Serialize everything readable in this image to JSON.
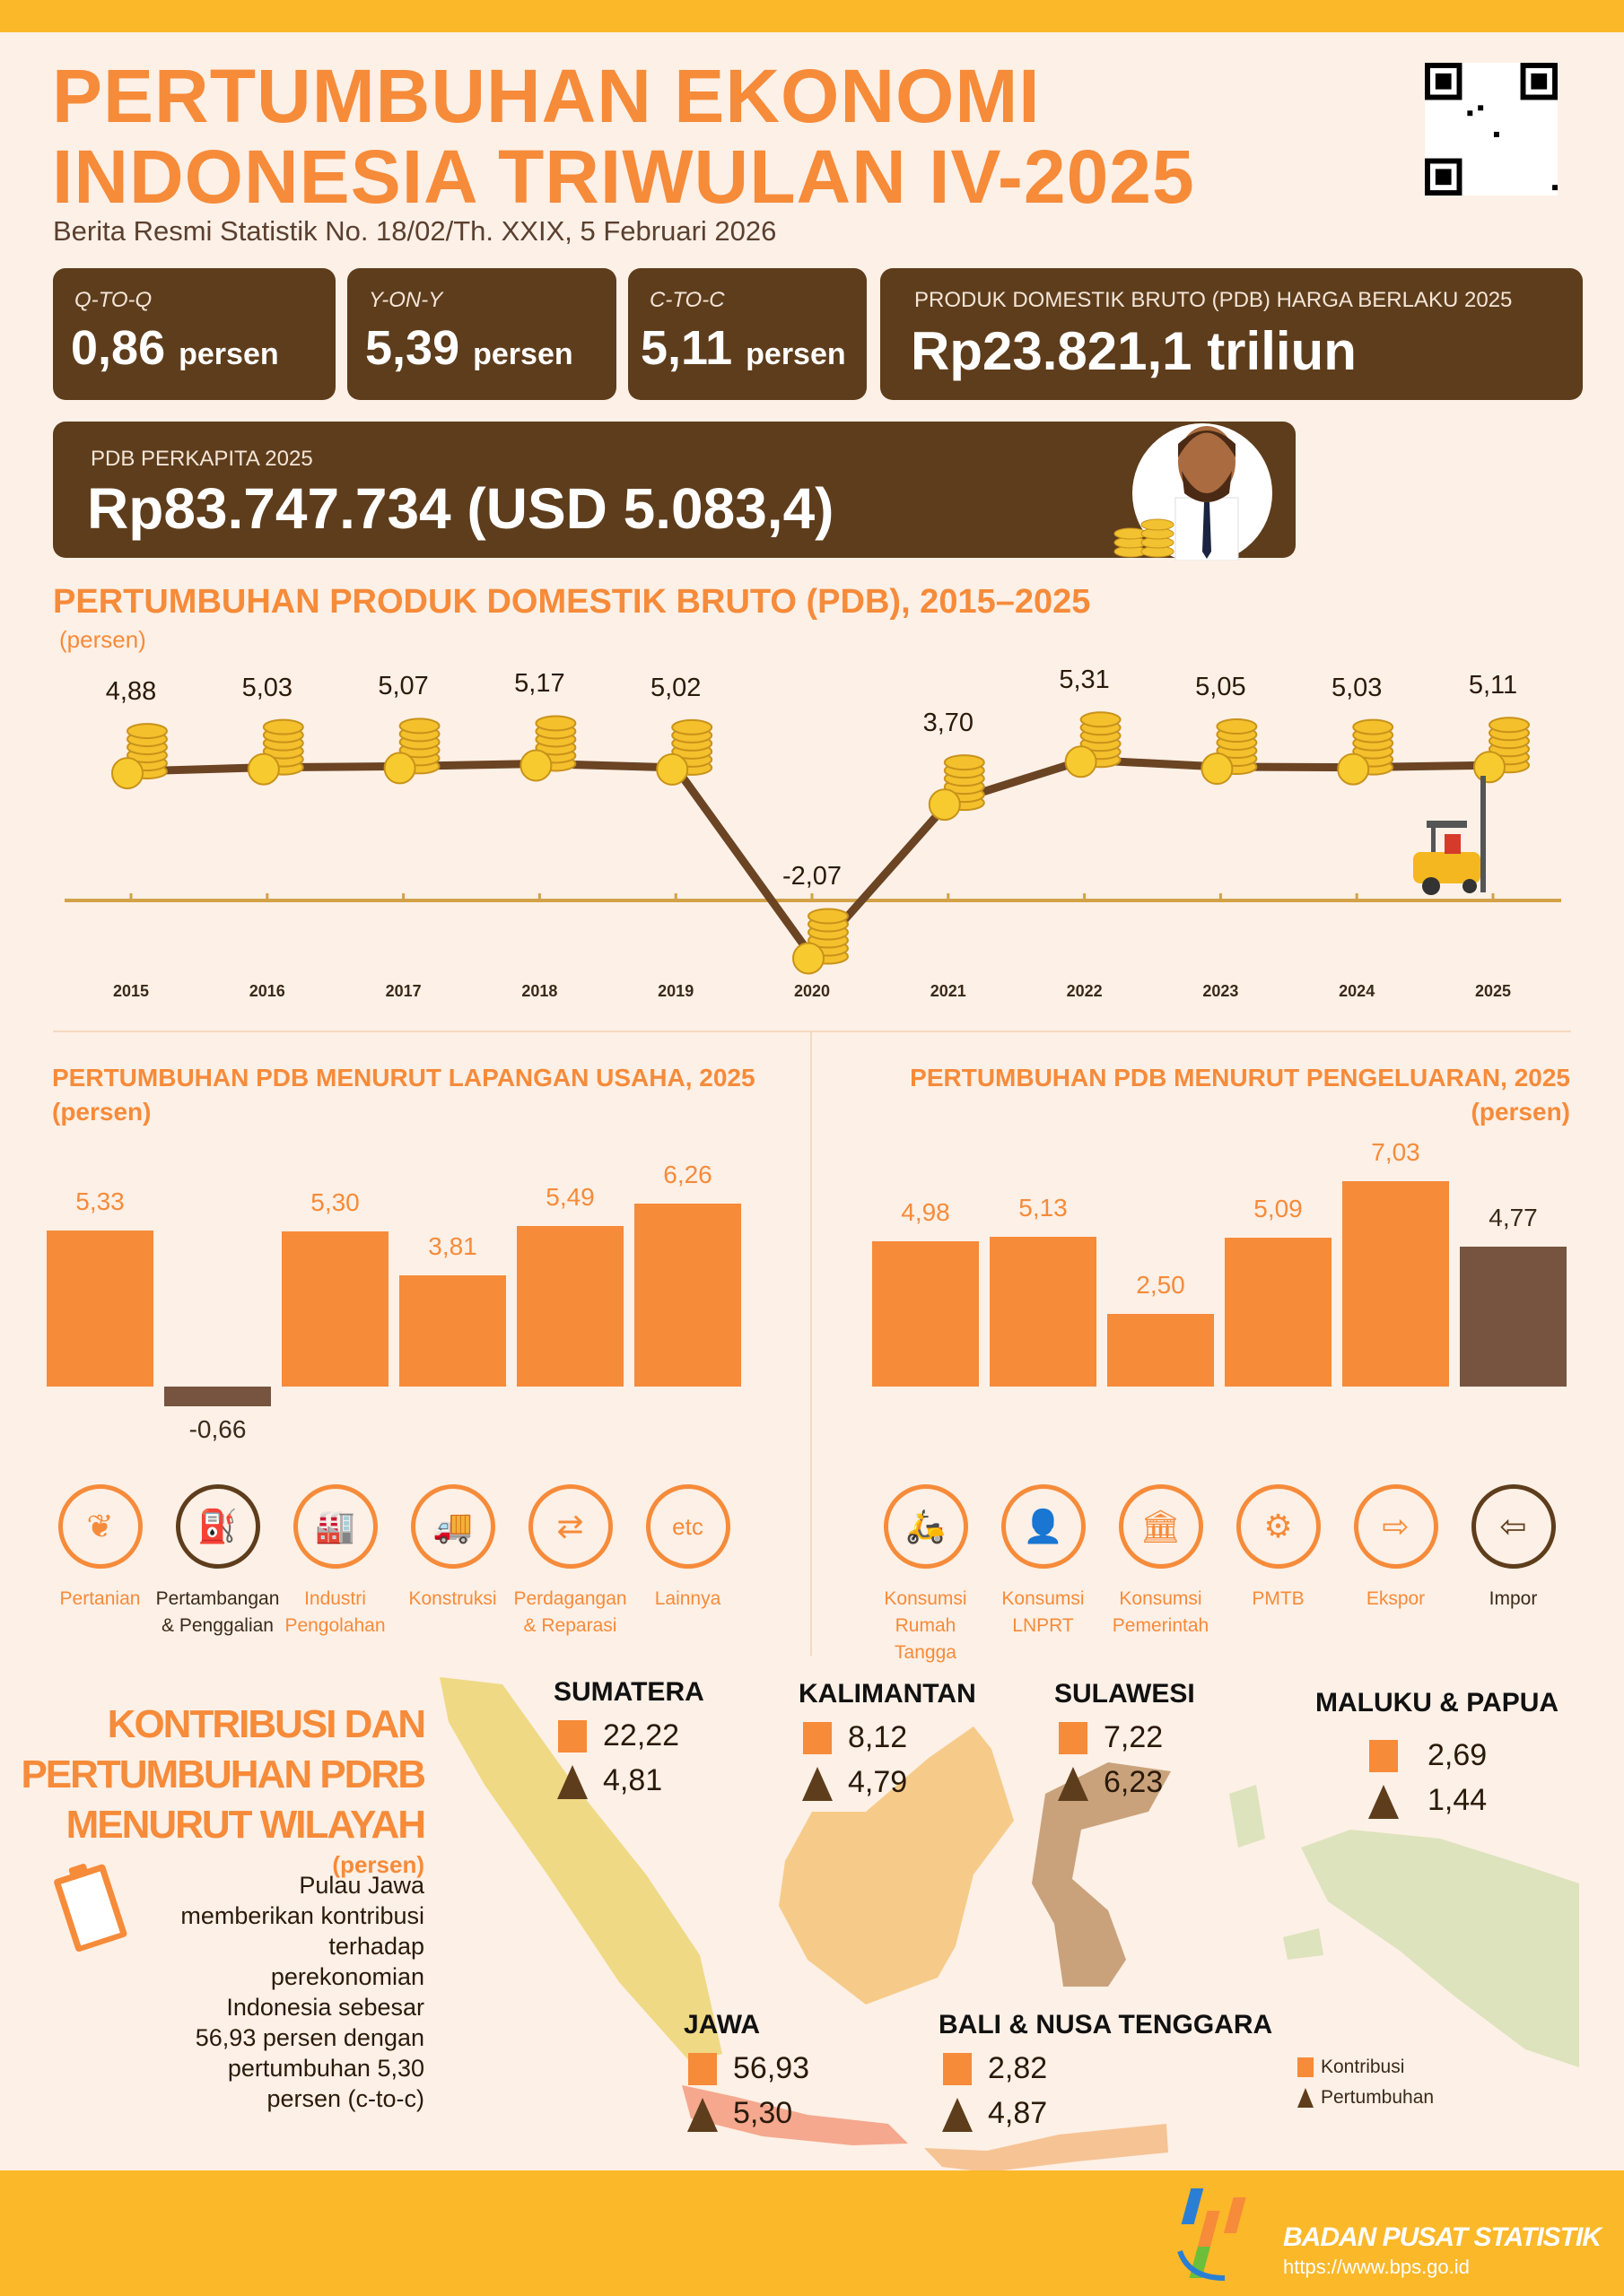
{
  "header": {
    "title_line1": "PERTUMBUHAN EKONOMI",
    "title_line2": "INDONESIA TRIWULAN IV-2025",
    "subtitle": "Berita Resmi Statistik No. 18/02/Th. XXIX, 5 Februari 2026"
  },
  "stats": [
    {
      "label": "Q-TO-Q",
      "value": "0,86",
      "unit": "persen"
    },
    {
      "label": "Y-ON-Y",
      "value": "5,39",
      "unit": "persen"
    },
    {
      "label": "C-TO-C",
      "value": "5,11",
      "unit": "persen"
    },
    {
      "label": "PRODUK DOMESTIK BRUTO (PDB) HARGA BERLAKU 2025",
      "value": "Rp23.821,1 triliun",
      "unit": ""
    }
  ],
  "per_capita": {
    "label": "PDB PERKAPITA 2025",
    "value": "Rp83.747.734 (USD 5.083,4)"
  },
  "colors": {
    "orange": "#f68b3a",
    "brown": "#5e3d1c",
    "bar_brown": "#765440",
    "yellow": "#fbb829",
    "background": "#fdf0e6"
  },
  "chart_data": [
    {
      "type": "line",
      "title": "PERTUMBUHAN PRODUK DOMESTIK BRUTO (PDB), 2015–2025",
      "ylabel": "(persen)",
      "categories": [
        "2015",
        "2016",
        "2017",
        "2018",
        "2019",
        "2020",
        "2021",
        "2022",
        "2023",
        "2024",
        "2025"
      ],
      "values": [
        4.88,
        5.03,
        5.07,
        5.17,
        5.02,
        -2.07,
        3.7,
        5.31,
        5.05,
        5.03,
        5.11
      ],
      "labels": [
        "4,88",
        "5,03",
        "5,07",
        "5,17",
        "5,02",
        "-2,07",
        "3,70",
        "5,31",
        "5,05",
        "5,03",
        "5,11"
      ],
      "grid": false,
      "marker": "coin-stack-icon"
    },
    {
      "type": "bar",
      "title": "PERTUMBUHAN PDB MENURUT LAPANGAN USAHA, 2025",
      "ylabel": "(persen)",
      "categories": [
        "Pertanian",
        "Pertambangan & Penggalian",
        "Industri Pengolahan",
        "Konstruksi",
        "Perdagangan & Reparasi",
        "Lainnya"
      ],
      "values": [
        5.33,
        -0.66,
        5.3,
        3.81,
        5.49,
        6.26
      ],
      "labels": [
        "5,33",
        "-0,66",
        "5,30",
        "3,81",
        "5,49",
        "6,26"
      ],
      "icons": [
        "leaf-icon",
        "oil-pump-icon",
        "factory-icon",
        "cement-truck-icon",
        "trade-icon",
        "etc-icon"
      ],
      "icon_text": [
        "",
        "",
        "",
        "",
        "",
        "etc"
      ],
      "label_lines": [
        [
          "Pertanian",
          ""
        ],
        [
          "Pertambangan",
          "& Penggalian"
        ],
        [
          "Industri",
          "Pengolahan"
        ],
        [
          "Konstruksi",
          ""
        ],
        [
          "Perdagangan",
          "& Reparasi"
        ],
        [
          "Lainnya",
          ""
        ]
      ]
    },
    {
      "type": "bar",
      "title": "PERTUMBUHAN PDB MENURUT PENGELUARAN, 2025",
      "ylabel": "(persen)",
      "categories": [
        "Konsumsi Rumah Tangga",
        "Konsumsi LNPRT",
        "Konsumsi Pemerintah",
        "PMTB",
        "Ekspor",
        "Impor"
      ],
      "values": [
        4.98,
        5.13,
        2.5,
        5.09,
        7.03,
        4.77
      ],
      "labels": [
        "4,98",
        "5,13",
        "2,50",
        "5,09",
        "7,03",
        "4,77"
      ],
      "icons": [
        "household-icon",
        "lnprt-icon",
        "government-building-icon",
        "robot-arm-icon",
        "export-ship-icon",
        "import-ship-icon"
      ],
      "label_lines": [
        [
          "Konsumsi",
          "Rumah Tangga"
        ],
        [
          "Konsumsi",
          "LNPRT"
        ],
        [
          "Konsumsi",
          "Pemerintah"
        ],
        [
          "PMTB",
          ""
        ],
        [
          "Ekspor",
          ""
        ],
        [
          "Impor",
          ""
        ]
      ]
    }
  ],
  "regional": {
    "title_lines": [
      "KONTRIBUSI DAN",
      "PERTUMBUHAN PDRB",
      "MENURUT WILAYAH"
    ],
    "unit": "(persen)",
    "note_lines": [
      "Pulau Jawa",
      "memberikan kontribusi",
      "terhadap",
      "perekonomian",
      "Indonesia sebesar",
      "56,93 persen dengan",
      "pertumbuhan 5,30",
      "persen (c-to-c)"
    ],
    "regions": [
      {
        "name": "SUMATERA",
        "kontribusi": "22,22",
        "pertumbuhan": "4,81",
        "color": "#efd985"
      },
      {
        "name": "KALIMANTAN",
        "kontribusi": "8,12",
        "pertumbuhan": "4,79",
        "color": "#f6cb8a"
      },
      {
        "name": "SULAWESI",
        "kontribusi": "7,22",
        "pertumbuhan": "6,23",
        "color": "#c9a27c"
      },
      {
        "name": "MALUKU & PAPUA",
        "kontribusi": "2,69",
        "pertumbuhan": "1,44",
        "color": "#dde3bd"
      },
      {
        "name": "JAWA",
        "kontribusi": "56,93",
        "pertumbuhan": "5,30",
        "color": "#f5a88e"
      },
      {
        "name": "BALI & NUSA TENGGARA",
        "kontribusi": "2,82",
        "pertumbuhan": "4,87",
        "color": "#f6c395"
      }
    ],
    "legend": {
      "kontribusi": "Kontribusi",
      "pertumbuhan": "Pertumbuhan"
    }
  },
  "footer": {
    "org": "BADAN PUSAT STATISTIK",
    "url": "https://www.bps.go.id"
  }
}
